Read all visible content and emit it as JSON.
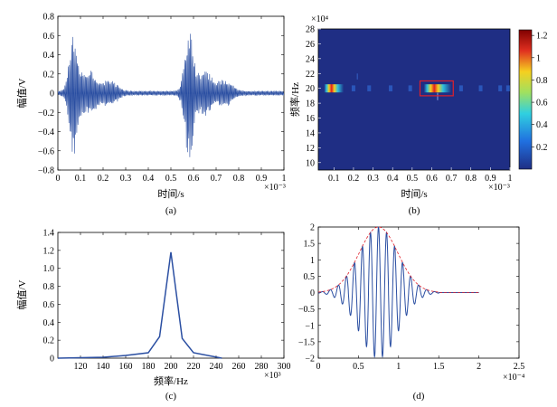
{
  "chart_data": [
    {
      "type": "line",
      "panel": "(a)",
      "xlabel": "时间/s",
      "ylabel": "幅值/V",
      "x_multiplier": "×10⁻³",
      "xlim": [
        0,
        1
      ],
      "ylim": [
        -0.8,
        0.8
      ],
      "xticks": [
        "0",
        "0.1",
        "0.2",
        "0.3",
        "0.4",
        "0.5",
        "0.6",
        "0.7",
        "0.8",
        "0.9",
        "1"
      ],
      "yticks": [
        "0.8",
        "0.6",
        "0.4",
        "0.2",
        "0",
        "−0.2",
        "−0.4",
        "−0.6",
        "−0.8"
      ],
      "bursts": [
        {
          "center": 0.07,
          "peak": 0.62,
          "trough": -0.64
        },
        {
          "center": 0.58,
          "peak": 0.66,
          "trough": -0.67
        }
      ],
      "color": "#2b4fa2"
    },
    {
      "type": "heatmap",
      "panel": "(b)",
      "xlabel": "时间/s",
      "ylabel": "频率/Hz",
      "x_multiplier": "×10⁻³",
      "y_multiplier": "×10⁴",
      "xlim": [
        0.02,
        1
      ],
      "ylim": [
        9,
        28
      ],
      "xticks": [
        "0.1",
        "0.2",
        "0.3",
        "0.4",
        "0.5",
        "0.6",
        "0.7",
        "0.8",
        "0.9",
        "1"
      ],
      "yticks": [
        "28",
        "26",
        "24",
        "22",
        "20",
        "18",
        "16",
        "14",
        "12",
        "10"
      ],
      "colorbar_ticks": [
        "1.2",
        "1",
        "0.8",
        "0.6",
        "0.4",
        "0.2"
      ],
      "background_color": "#1f2e84",
      "hot_band": {
        "freq": 20,
        "segments": [
          [
            0.05,
            0.15
          ],
          [
            0.56,
            0.7
          ]
        ]
      },
      "highlight_box": {
        "x": [
          0.54,
          0.71
        ],
        "y": [
          19.0,
          21.0
        ],
        "color": "#e0202a"
      }
    },
    {
      "type": "line",
      "panel": "(c)",
      "xlabel": "频率/Hz",
      "ylabel": "幅值/V",
      "x_multiplier": "×10³",
      "xlim": [
        100,
        300
      ],
      "ylim": [
        0,
        1.4
      ],
      "xticks": [
        "120",
        "140",
        "160",
        "180",
        "200",
        "220",
        "240",
        "260",
        "280",
        "300"
      ],
      "yticks": [
        "1.4",
        "1.2",
        "1.0",
        "0.8",
        "0.6",
        "0.4",
        "0.2",
        "0"
      ],
      "x": [
        100,
        140,
        160,
        180,
        190,
        200,
        210,
        220,
        245
      ],
      "y": [
        0.0,
        0.01,
        0.03,
        0.06,
        0.24,
        1.18,
        0.22,
        0.06,
        0.0
      ],
      "color": "#2b4fa2"
    },
    {
      "type": "line",
      "panel": "(d)",
      "x_multiplier": "×10⁻⁴",
      "xlim": [
        0,
        2.5
      ],
      "ylim": [
        -2,
        2
      ],
      "xticks": [
        "0",
        "0.5",
        "1",
        "1.5",
        "2",
        "2.5"
      ],
      "yticks": [
        "2",
        "1.5",
        "1",
        "0.5",
        "0",
        "−0.5",
        "−1",
        "−1.5",
        "−2"
      ],
      "signal": {
        "center": 0.75,
        "amplitude": 2,
        "end": 2.0
      },
      "envelope_color": "#e0202a",
      "color": "#2b4fa2"
    }
  ]
}
